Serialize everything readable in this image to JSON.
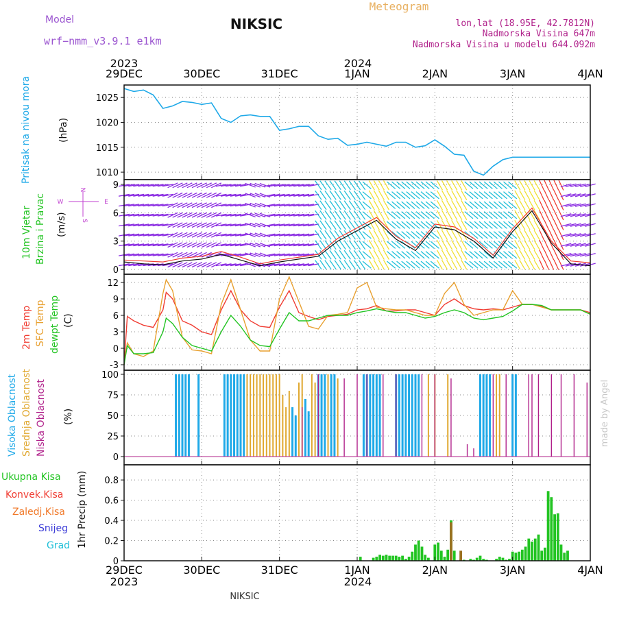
{
  "header": {
    "model_label": "Model",
    "model_name": "wrf−nmm_v3.9.1  e1km",
    "station": "NIKSIC",
    "meteogram": "Meteogram",
    "lonlat": "lon,lat (18.95E, 42.7812N)",
    "elevation": "Nadmorska Visina 647m",
    "model_elevation": "Nadmorska Visina u modelu 644.092m",
    "footer_station": "NIKSIC",
    "watermark": "made by Angel"
  },
  "time_axis": {
    "tick_labels": [
      "29DEC",
      "30DEC",
      "31DEC",
      "1JAN",
      "2JAN",
      "3JAN",
      "4JAN"
    ],
    "year_start": "2023",
    "year_new": "2024"
  },
  "colors": {
    "pressure": "#1fa9e8",
    "temp2m": "#f03c32",
    "sfc": "#e8a030",
    "dew": "#22c422",
    "precip_total": "#22c422",
    "precip_frozen": "#9a7020",
    "cloud_high": "#1fa9e8",
    "cloud_mid": "#e0a830",
    "cloud_low": "#b0208a",
    "wind_slow": "#8a2be2",
    "wind_mid": "#20c0d8",
    "wind_fast": "#f0e030",
    "wind_gust": "#f03c32"
  },
  "panels": {
    "pressure": {
      "title": "Pritisak na nivou mora",
      "unit": "(hPa)",
      "ticks": [
        "1025",
        "1020",
        "1015",
        "1010"
      ]
    },
    "wind": {
      "title1": "10m Vjetar",
      "title2": "Brzina i Pravac",
      "unit": "(m/s)",
      "ticks": [
        "9",
        "6",
        "3",
        "0"
      ],
      "compass_n": "N",
      "compass_e": "E",
      "compass_w": "W",
      "compass_s": "S"
    },
    "temperature": {
      "t2m": "2m Temp",
      "sfc": "SFC Temp",
      "dew": "dewpt Temp",
      "unit": "(C)",
      "ticks": [
        "12",
        "9",
        "6",
        "3",
        "0",
        "-3"
      ]
    },
    "cloud": {
      "high": "Visoka Oblacnost",
      "mid": "Srednja Oblacnost",
      "low": "Niska Oblacnost",
      "unit": "(%)",
      "ticks": [
        "100",
        "75",
        "50",
        "25",
        "0"
      ]
    },
    "precip": {
      "l1": "Ukupna Kisa",
      "l2": "Konvek.Kisa",
      "l3": "Zaledj.Kisa",
      "l4": "Snijeg",
      "l5": "Grad",
      "unit": "1hr Precip (mm)",
      "ticks": [
        "0.8",
        "0.6",
        "0.4",
        "0.2",
        "0"
      ]
    }
  },
  "chart_data": [
    {
      "type": "line",
      "name": "pressure",
      "x_unit": "hours since 29DEC 00",
      "ylim": [
        1008.5,
        1027.5
      ],
      "x": [
        0,
        3,
        6,
        9,
        12,
        15,
        18,
        21,
        24,
        27,
        30,
        33,
        36,
        39,
        42,
        45,
        48,
        51,
        54,
        57,
        60,
        63,
        66,
        69,
        72,
        75,
        78,
        81,
        84,
        87,
        90,
        93,
        96,
        99,
        102,
        105,
        108,
        111,
        114,
        117,
        120,
        123,
        126,
        129,
        132,
        135,
        138,
        141,
        144
      ],
      "y": [
        1026.8,
        1026.2,
        1026.5,
        1025.5,
        1022.8,
        1023.3,
        1024.2,
        1024.0,
        1023.6,
        1023.9,
        1020.8,
        1020.0,
        1021.3,
        1021.5,
        1021.2,
        1021.2,
        1018.4,
        1018.7,
        1019.2,
        1019.2,
        1017.3,
        1016.6,
        1016.8,
        1015.4,
        1015.6,
        1016.0,
        1015.6,
        1015.2,
        1016.0,
        1016.0,
        1015.0,
        1015.3,
        1016.5,
        1015.2,
        1013.6,
        1013.4,
        1010.2,
        1009.4,
        1011.2,
        1012.5,
        1013.0,
        1013.0,
        1013.0,
        1013.0,
        1013.0,
        1013.0,
        1013.0,
        1013.0,
        1013.0
      ]
    },
    {
      "type": "line",
      "name": "wind",
      "x_unit": "hours since 29DEC 00",
      "ylim": [
        -0.5,
        9.5
      ],
      "series": [
        {
          "name": "speed",
          "x": [
            0,
            6,
            12,
            18,
            24,
            30,
            36,
            42,
            48,
            54,
            60,
            66,
            72,
            78,
            84,
            90,
            96,
            102,
            108,
            114,
            120,
            126,
            132,
            138,
            144
          ],
          "y": [
            0.8,
            0.6,
            0.5,
            0.9,
            1.1,
            1.6,
            1.0,
            0.4,
            0.8,
            1.1,
            1.4,
            3.0,
            4.1,
            5.2,
            3.2,
            2.0,
            4.5,
            4.2,
            3.0,
            1.2,
            4.0,
            6.2,
            2.8,
            0.6,
            0.4
          ]
        },
        {
          "name": "gust",
          "x": [
            0,
            6,
            12,
            18,
            24,
            30,
            36,
            42,
            48,
            54,
            60,
            66,
            72,
            78,
            84,
            90,
            96,
            102,
            108,
            114,
            120,
            126,
            132,
            138,
            144
          ],
          "y": [
            1.0,
            0.9,
            0.8,
            1.2,
            1.4,
            1.9,
            1.3,
            0.6,
            1.0,
            1.3,
            1.6,
            3.3,
            4.4,
            5.5,
            3.5,
            2.3,
            4.8,
            4.5,
            3.3,
            1.5,
            4.3,
            6.5,
            3.0,
            0.9,
            0.7
          ]
        }
      ]
    },
    {
      "type": "line",
      "name": "temperature",
      "x_unit": "hours since 29DEC 00",
      "ylim": [
        -4,
        13.5
      ],
      "x": [
        0,
        1,
        3,
        6,
        9,
        12,
        13,
        15,
        18,
        21,
        24,
        27,
        30,
        33,
        36,
        39,
        42,
        45,
        48,
        51,
        54,
        57,
        60,
        63,
        66,
        69,
        72,
        75,
        78,
        81,
        84,
        87,
        90,
        93,
        96,
        99,
        102,
        105,
        108,
        111,
        114,
        117,
        120,
        123,
        126,
        129,
        132,
        135,
        138,
        141,
        144
      ],
      "series": [
        {
          "name": "2m",
          "y": [
            -3,
            5.8,
            5.0,
            4.2,
            3.8,
            7,
            10.2,
            9.0,
            5.0,
            4.2,
            3.0,
            2.5,
            7.0,
            10.5,
            7.0,
            5.0,
            4.0,
            3.8,
            7.5,
            10.5,
            6.5,
            5.8,
            5.2,
            5.8,
            6.0,
            6.2,
            7.0,
            7.2,
            7.8,
            6.8,
            6.8,
            7.0,
            7.0,
            6.5,
            6.0,
            8.0,
            9.0,
            7.8,
            7.2,
            7.0,
            7.2,
            7.0,
            7.5,
            8.0,
            8.0,
            7.6,
            7.0,
            7.0,
            7.0,
            7.0,
            6.5
          ]
        },
        {
          "name": "SFC",
          "y": [
            -3,
            1.0,
            -1.0,
            -1.5,
            -0.5,
            10,
            12.5,
            10.5,
            2.0,
            -0.3,
            -0.5,
            -1.0,
            8.0,
            12.5,
            7.0,
            1.5,
            -0.5,
            -0.5,
            9.0,
            13.0,
            8.5,
            4.0,
            3.5,
            6.0,
            6.2,
            6.5,
            11.0,
            12.0,
            7.5,
            7.2,
            7.0,
            7.0,
            6.5,
            6.0,
            6.0,
            10.0,
            12.0,
            8.0,
            6.0,
            6.5,
            7.0,
            7.0,
            10.5,
            8.0,
            8.0,
            7.5,
            7.0,
            7.0,
            7.0,
            7.0,
            6.2
          ]
        },
        {
          "name": "dewpt",
          "y": [
            -3,
            0.5,
            -1.0,
            -1.0,
            -0.8,
            3.0,
            5.5,
            4.5,
            2.0,
            0.5,
            0.0,
            -0.5,
            3.0,
            6.0,
            4.0,
            1.5,
            0.5,
            0.3,
            3.5,
            6.5,
            5.0,
            5.0,
            5.5,
            6.0,
            6.0,
            6.0,
            6.5,
            6.8,
            7.2,
            6.8,
            6.5,
            6.5,
            6.0,
            5.5,
            5.8,
            6.5,
            7.0,
            6.5,
            5.5,
            5.2,
            5.5,
            5.8,
            6.8,
            8.0,
            8.0,
            7.8,
            7.0,
            7.0,
            7.0,
            7.0,
            6.2
          ]
        }
      ]
    },
    {
      "type": "bar",
      "name": "cloud",
      "x_unit": "hours since 29DEC 00",
      "ylim": [
        0,
        100
      ],
      "series": [
        {
          "name": "high",
          "x": [
            16,
            17,
            18,
            19,
            20,
            23,
            31,
            32,
            33,
            34,
            35,
            36,
            37,
            52,
            53,
            56,
            57,
            60,
            61,
            62,
            64,
            65,
            74,
            75,
            76,
            77,
            78,
            79,
            84,
            85,
            86,
            87,
            88,
            89,
            90,
            91,
            110,
            111,
            112,
            113,
            120,
            121
          ],
          "y": [
            100,
            100,
            100,
            100,
            100,
            100,
            100,
            100,
            100,
            100,
            100,
            100,
            100,
            60,
            50,
            70,
            55,
            100,
            100,
            100,
            100,
            100,
            100,
            100,
            100,
            100,
            100,
            100,
            100,
            100,
            100,
            100,
            100,
            100,
            100,
            100,
            100,
            100,
            100,
            100,
            100,
            100
          ]
        },
        {
          "name": "mid",
          "x": [
            31,
            33,
            35,
            37,
            38,
            39,
            40,
            41,
            42,
            43,
            44,
            45,
            46,
            47,
            48,
            49,
            50,
            51,
            54,
            55,
            58,
            59,
            63,
            66,
            78,
            85,
            86,
            88,
            94,
            96,
            100,
            111,
            115,
            116
          ],
          "y": [
            100,
            100,
            100,
            100,
            100,
            100,
            100,
            100,
            100,
            100,
            100,
            100,
            100,
            100,
            100,
            75,
            60,
            80,
            90,
            100,
            100,
            90,
            100,
            95,
            100,
            100,
            100,
            100,
            100,
            100,
            100,
            100,
            100,
            100
          ]
        },
        {
          "name": "low",
          "x": [
            55,
            60,
            68,
            72,
            75,
            80,
            84,
            92,
            96,
            101,
            106,
            108,
            114,
            118,
            125,
            126,
            128,
            132,
            135,
            139,
            143
          ],
          "y": [
            60,
            100,
            95,
            100,
            100,
            100,
            100,
            100,
            100,
            95,
            15,
            10,
            100,
            100,
            100,
            100,
            100,
            100,
            100,
            100,
            90
          ]
        }
      ]
    },
    {
      "type": "bar",
      "name": "precip",
      "x_unit": "hours since 29DEC 00",
      "ylim": [
        0,
        0.95
      ],
      "series": [
        {
          "name": "Ukupna Kisa",
          "x": [
            73,
            77,
            78,
            79,
            80,
            81,
            82,
            83,
            84,
            85,
            86,
            87,
            88,
            89,
            90,
            91,
            92,
            93,
            94,
            96,
            97,
            98,
            99,
            100,
            101,
            102,
            104,
            105,
            107,
            108,
            109,
            110,
            111,
            112,
            115,
            116,
            117,
            118,
            119,
            120,
            121,
            122,
            123,
            124,
            125,
            126,
            127,
            128,
            129,
            130,
            131,
            132,
            133,
            134,
            135,
            136,
            137
          ],
          "y": [
            0.04,
            0.03,
            0.04,
            0.06,
            0.05,
            0.06,
            0.05,
            0.05,
            0.05,
            0.04,
            0.05,
            0.02,
            0.04,
            0.09,
            0.16,
            0.2,
            0.14,
            0.06,
            0.03,
            0.16,
            0.18,
            0.1,
            0.04,
            0.11,
            0.4,
            0.1,
            0.02,
            0.01,
            0.02,
            0.01,
            0.03,
            0.05,
            0.02,
            0.01,
            0.02,
            0.04,
            0.03,
            0.01,
            0.02,
            0.09,
            0.08,
            0.09,
            0.11,
            0.14,
            0.22,
            0.19,
            0.22,
            0.26,
            0.1,
            0.13,
            0.69,
            0.63,
            0.46,
            0.47,
            0.16,
            0.08,
            0.1
          ]
        },
        {
          "name": "Zaledj.Kisa",
          "x": [
            101,
            104
          ],
          "y": [
            0.38,
            0.1
          ]
        }
      ]
    }
  ]
}
